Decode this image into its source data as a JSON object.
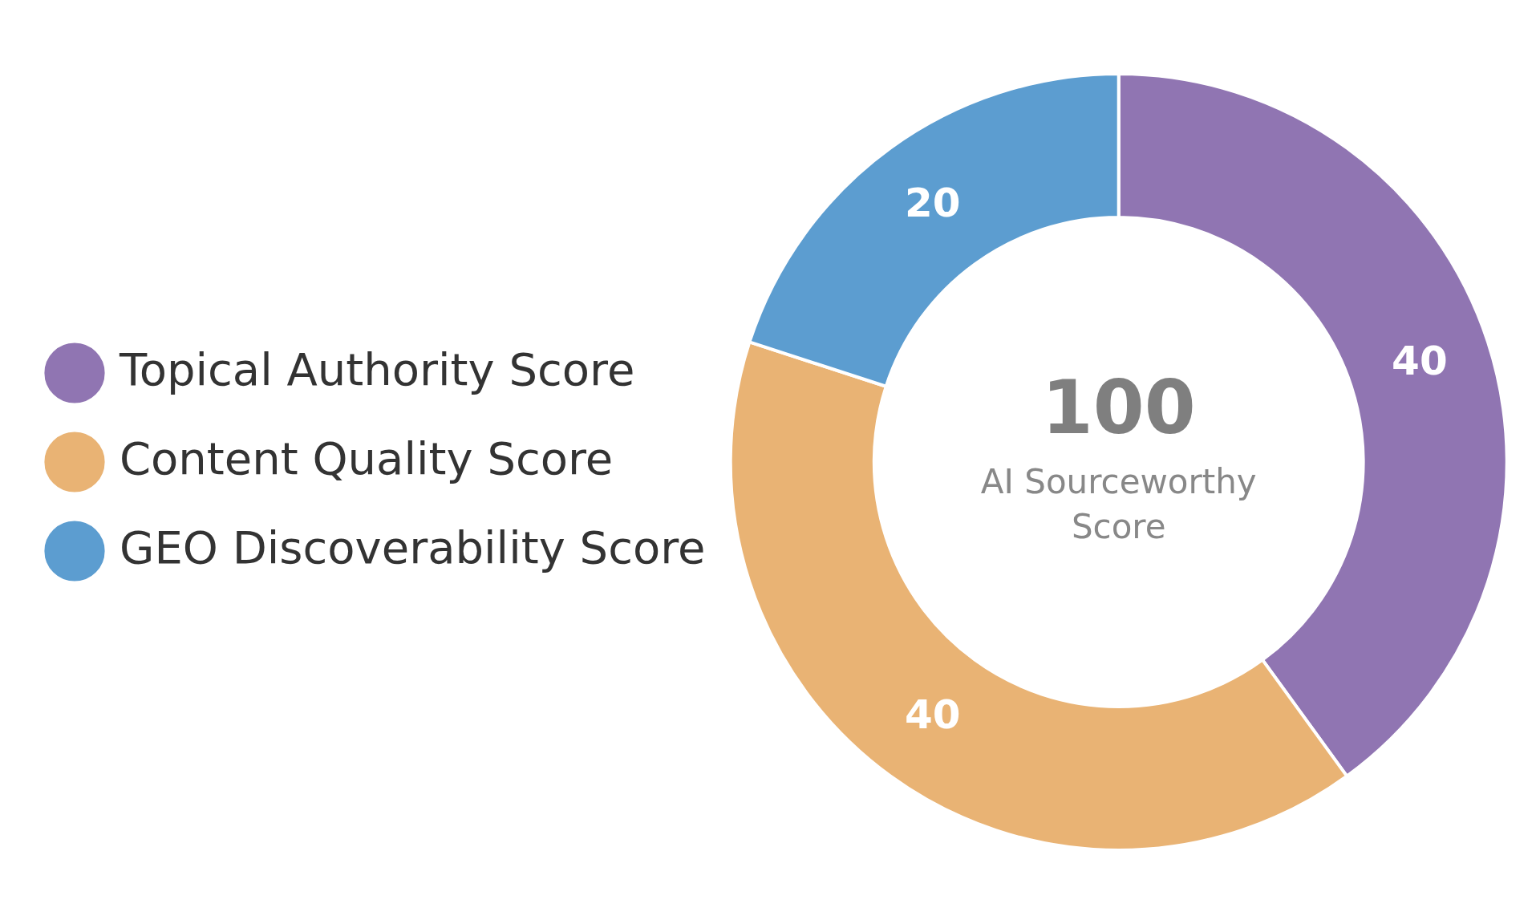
{
  "chart_data": {
    "type": "donut",
    "categories": [
      "Topical Authority Score",
      "Content Quality Score",
      "GEO Discoverability Score"
    ],
    "values": [
      40,
      40,
      20
    ],
    "colors": [
      "#9075b2",
      "#e9b374",
      "#5c9dd0"
    ],
    "data_labels": true,
    "legend": "left",
    "annotations": [
      "100",
      "AI Sourceworthy Score"
    ]
  }
}
